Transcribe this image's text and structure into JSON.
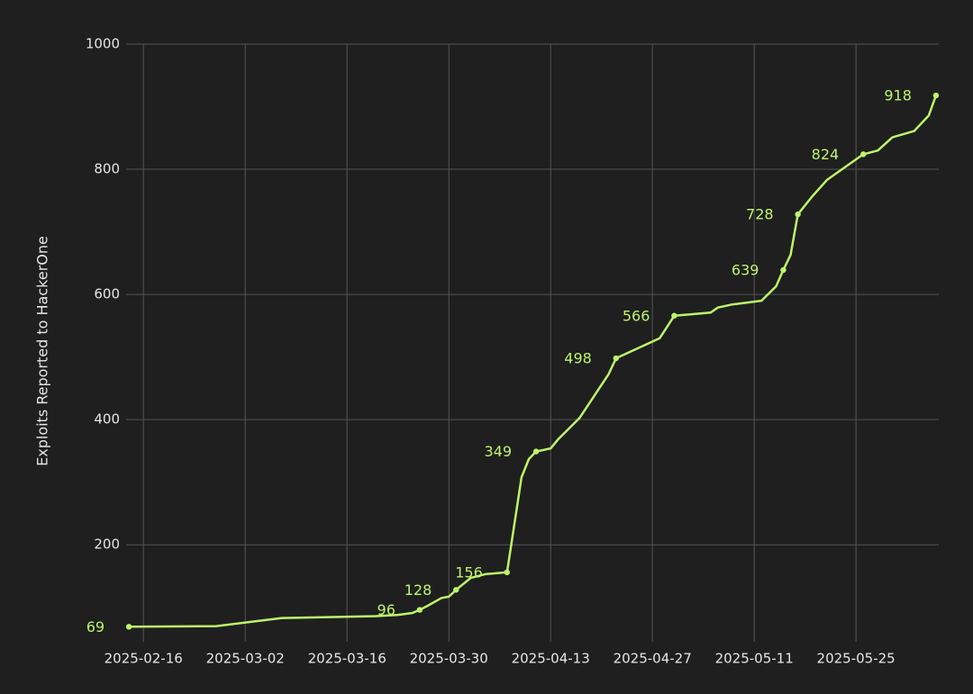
{
  "chart_data": {
    "type": "line",
    "y_label": "Exploits Reported to HackerOne",
    "x": [
      "2025-02-14",
      "2025-02-26",
      "2025-03-07",
      "2025-03-20",
      "2025-03-23",
      "2025-03-25",
      "2025-03-26",
      "2025-03-27",
      "2025-03-29",
      "2025-03-30",
      "2025-03-31",
      "2025-04-02",
      "2025-04-04",
      "2025-04-07",
      "2025-04-09",
      "2025-04-10",
      "2025-04-11",
      "2025-04-13",
      "2025-04-14",
      "2025-04-17",
      "2025-04-21",
      "2025-04-22",
      "2025-04-28",
      "2025-04-30",
      "2025-05-05",
      "2025-05-06",
      "2025-05-08",
      "2025-05-12",
      "2025-05-14",
      "2025-05-15",
      "2025-05-16",
      "2025-05-17",
      "2025-05-19",
      "2025-05-21",
      "2025-05-26",
      "2025-05-28",
      "2025-05-30",
      "2025-06-02",
      "2025-06-04",
      "2025-06-05"
    ],
    "series": [
      {
        "color": "#bdf56b",
        "values": [
          69,
          70,
          83,
          86,
          88,
          91,
          96,
          102,
          115,
          117,
          128,
          147,
          153,
          156,
          308,
          337,
          349,
          354,
          368,
          403,
          473,
          498,
          530,
          566,
          571,
          579,
          584,
          590,
          613,
          639,
          663,
          728,
          757,
          783,
          824,
          830,
          851,
          861,
          886,
          918
        ],
        "value_labels": [
          "69",
          null,
          null,
          null,
          null,
          null,
          "96",
          null,
          null,
          null,
          "128",
          null,
          null,
          "156",
          null,
          null,
          "349",
          null,
          null,
          null,
          null,
          "498",
          null,
          "566",
          null,
          null,
          null,
          null,
          null,
          "639",
          null,
          "728",
          null,
          null,
          "824",
          null,
          null,
          null,
          null,
          "918"
        ]
      }
    ],
    "xlim": [
      "2025-02-13",
      "2025-06-06"
    ],
    "xticks": [
      "2025-02-16",
      "2025-03-02",
      "2025-03-16",
      "2025-03-30",
      "2025-04-13",
      "2025-04-27",
      "2025-05-11",
      "2025-05-25"
    ],
    "ylim": [
      45,
      1000
    ],
    "yticks": [
      200,
      400,
      600,
      800,
      1000
    ],
    "grid": true
  }
}
